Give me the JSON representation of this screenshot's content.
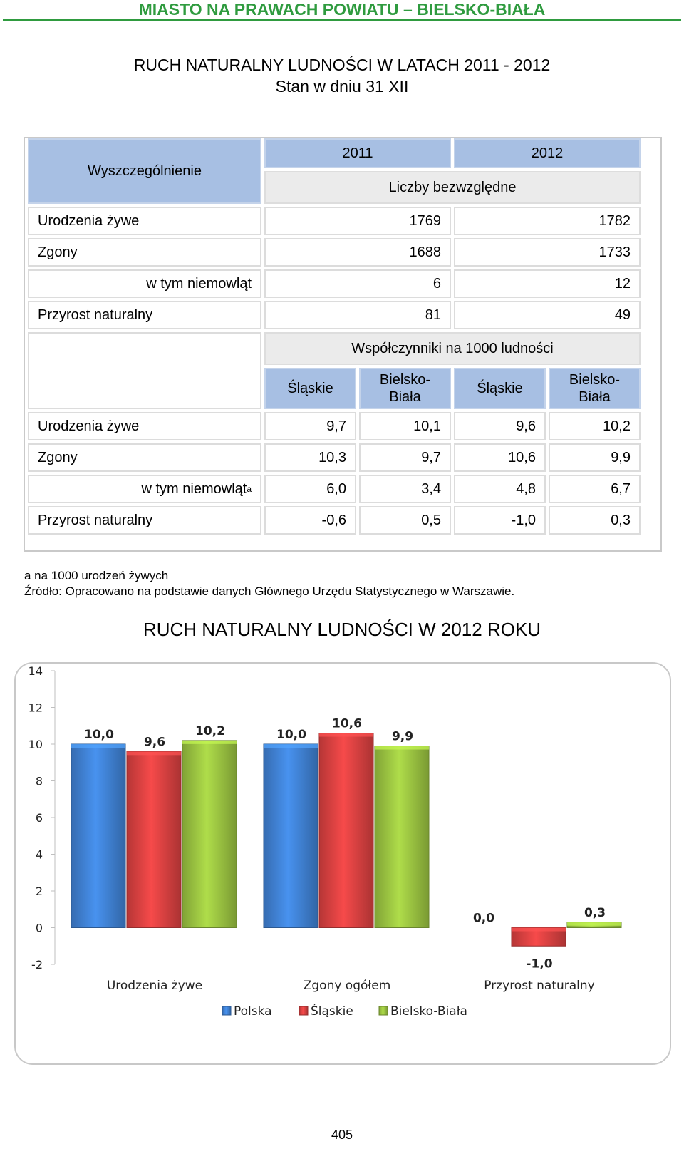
{
  "header": "MIASTO NA PRAWACH POWIATU – BIELSKO-BIAŁA",
  "title_line1": "RUCH NATURALNY LUDNOŚCI W LATACH 2011 - 2012",
  "title_line2": "Stan w dniu 31 XII",
  "table": {
    "col_header": "Wyszczególnienie",
    "year_2011": "2011",
    "year_2012": "2012",
    "abs_label": "Liczby bezwzględne",
    "abs_rows": [
      {
        "label": "Urodzenia żywe",
        "v2011": "1769",
        "v2012": "1782"
      },
      {
        "label": "Zgony",
        "v2011": "1688",
        "v2012": "1733"
      },
      {
        "label": "w tym niemowląt",
        "v2011": "6",
        "v2012": "12"
      },
      {
        "label": "Przyrost naturalny",
        "v2011": "81",
        "v2012": "49"
      }
    ],
    "coef_label": "Współczynniki na 1000 ludności",
    "sub_headers": {
      "slaskie": "Śląskie",
      "bb_line1": "Bielsko-",
      "bb_line2": "Biała"
    },
    "coef_rows": [
      {
        "label": "Urodzenia żywe",
        "sup": "",
        "vals": [
          "9,7",
          "10,1",
          "9,6",
          "10,2"
        ]
      },
      {
        "label": "Zgony",
        "sup": "",
        "vals": [
          "10,3",
          "9,7",
          "10,6",
          "9,9"
        ]
      },
      {
        "label": "w tym niemowląt",
        "sup": "a",
        "vals": [
          "6,0",
          "3,4",
          "4,8",
          "6,7"
        ]
      },
      {
        "label": "Przyrost naturalny",
        "sup": "",
        "vals": [
          "-0,6",
          "0,5",
          "-1,0",
          "0,3"
        ]
      }
    ]
  },
  "notes": {
    "footnote": "a na 1000 urodzeń żywych",
    "source": "Źródło: Opracowano na podstawie danych Głównego Urzędu Statystycznego w Warszawie."
  },
  "chart_title": "RUCH NATURALNY LUDNOŚCI W 2012 ROKU",
  "chart_data": {
    "type": "bar",
    "categories": [
      "Urodzenia żywe",
      "Zgony ogółem",
      "Przyrost naturalny"
    ],
    "series": [
      {
        "name": "Polska",
        "values": [
          10.0,
          10.0,
          0.0
        ],
        "labels": [
          "10,0",
          "10,0",
          "0,0"
        ],
        "color": "#3f7fd0"
      },
      {
        "name": "Śląskie",
        "values": [
          9.6,
          10.6,
          -1.0
        ],
        "labels": [
          "9,6",
          "10,6",
          "-1,0"
        ],
        "color": "#d64040"
      },
      {
        "name": "Bielsko-Biała",
        "values": [
          10.2,
          9.9,
          0.3
        ],
        "labels": [
          "10,2",
          "9,9",
          "0,3"
        ],
        "color": "#98c040"
      }
    ],
    "ylim": [
      -2,
      14
    ],
    "yticks": [
      "14",
      "12",
      "10",
      "8",
      "6",
      "4",
      "2",
      "0",
      "-2"
    ],
    "legend_position": "bottom",
    "grid": false
  },
  "page_number": "405"
}
